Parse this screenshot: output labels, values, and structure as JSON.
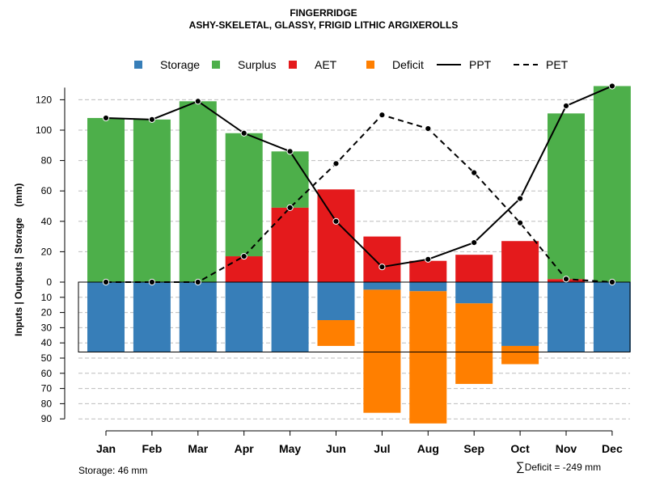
{
  "chart_data": {
    "type": "bar",
    "title": "FINGERRIDGE",
    "subtitle": "ASHY-SKELETAL, GLASSY, FRIGID LITHIC ARGIXEROLLS",
    "ylabel": "Inputs | Outputs | Storage    (mm)",
    "categories": [
      "Jan",
      "Feb",
      "Mar",
      "Apr",
      "May",
      "Jun",
      "Jul",
      "Aug",
      "Sep",
      "Oct",
      "Nov",
      "Dec"
    ],
    "upper_ticks": [
      "0",
      "20",
      "40",
      "60",
      "80",
      "100",
      "120"
    ],
    "lower_ticks": [
      "10",
      "20",
      "30",
      "40",
      "50",
      "60",
      "70",
      "80",
      "90"
    ],
    "upper_ylim": [
      0,
      130
    ],
    "lower_ylim": [
      0,
      90
    ],
    "series": [
      {
        "name": "Storage",
        "color": "#377EB8",
        "values": [
          46,
          46,
          46,
          46,
          46,
          25,
          5,
          6,
          14,
          42,
          46,
          46
        ]
      },
      {
        "name": "Surplus",
        "color": "#4DAF4A",
        "values": [
          108,
          107,
          119,
          81,
          37,
          0,
          0,
          0,
          0,
          0,
          109,
          129
        ]
      },
      {
        "name": "AET",
        "color": "#E41A1C",
        "values": [
          0,
          0,
          0,
          17,
          49,
          61,
          30,
          14,
          18,
          27,
          2,
          0
        ]
      },
      {
        "name": "Deficit",
        "color": "#FF7F00",
        "values": [
          0,
          0,
          0,
          0,
          0,
          17,
          81,
          87,
          53,
          12,
          0,
          0
        ]
      },
      {
        "name": "PPT",
        "style": "solid",
        "values": [
          108,
          107,
          119,
          98,
          86,
          40,
          10,
          15,
          26,
          55,
          116,
          129
        ]
      },
      {
        "name": "PET",
        "style": "dashed",
        "values": [
          0,
          0,
          0,
          17,
          49,
          78,
          110,
          101,
          72,
          39,
          2,
          0
        ]
      }
    ],
    "storage_capacity": 46,
    "legend": [
      "Storage",
      "Surplus",
      "AET",
      "Deficit",
      "PPT",
      "PET"
    ],
    "legend_position": "top"
  },
  "footer": {
    "storage_text": "Storage: 46 mm",
    "deficit_symbol": "∑",
    "deficit_text": "Deficit = -249 mm"
  }
}
